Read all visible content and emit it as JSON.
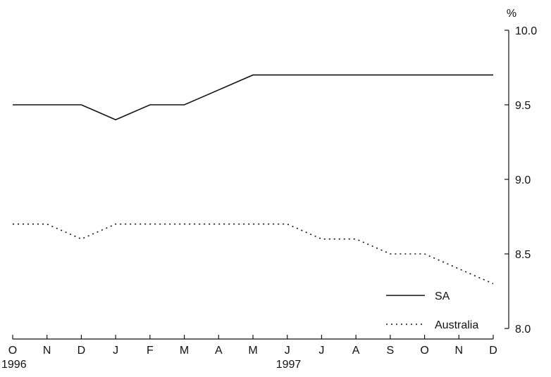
{
  "chart_data": {
    "type": "line",
    "title": "",
    "xlabel": "",
    "ylabel": "%",
    "categories": [
      "O",
      "N",
      "D",
      "J",
      "F",
      "M",
      "A",
      "M",
      "J",
      "J",
      "A",
      "S",
      "O",
      "N",
      "D"
    ],
    "year_labels": [
      {
        "category_index": 0,
        "text": "1996"
      },
      {
        "category_index": 8,
        "text": "1997"
      }
    ],
    "ylim": [
      8.0,
      10.0
    ],
    "yticks": [
      "8.0",
      "8.5",
      "9.0",
      "9.5",
      "10.0"
    ],
    "y_axis_position": "right",
    "grid": false,
    "legend_position": "bottom-right",
    "series": [
      {
        "name": "SA",
        "style": "solid",
        "color": "#111111",
        "values": [
          9.5,
          9.5,
          9.5,
          9.4,
          9.5,
          9.5,
          9.6,
          9.7,
          9.7,
          9.7,
          9.7,
          9.7,
          9.7,
          9.7,
          9.7
        ]
      },
      {
        "name": "Australia",
        "style": "dotted",
        "color": "#111111",
        "values": [
          8.7,
          8.7,
          8.6,
          8.7,
          8.7,
          8.7,
          8.7,
          8.7,
          8.7,
          8.6,
          8.6,
          8.5,
          8.5,
          8.4,
          8.3
        ]
      }
    ]
  }
}
